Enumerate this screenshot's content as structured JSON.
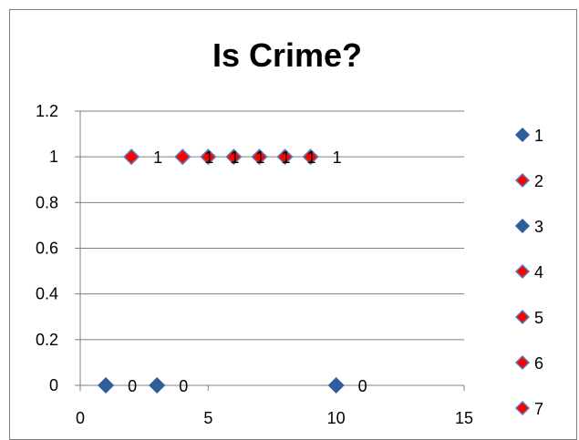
{
  "chart_data": {
    "type": "scatter",
    "title": "Is Crime?",
    "xlabel": "",
    "ylabel": "",
    "xlim": [
      0,
      15
    ],
    "ylim": [
      0,
      1.2
    ],
    "x_ticks": [
      "0",
      "5",
      "10",
      "15"
    ],
    "y_ticks": [
      "0",
      "0.2",
      "0.4",
      "0.6",
      "0.8",
      "1",
      "1.2"
    ],
    "grid": "horizontal",
    "legend_position": "right",
    "colors": {
      "blue": "#2E5E9B",
      "red": "#FF0000",
      "red_outline": "#4F81BD",
      "axis": "#808080"
    },
    "series": [
      {
        "name": "1",
        "x": 1,
        "y": 0,
        "label": "0",
        "color": "blue"
      },
      {
        "name": "2",
        "x": 2,
        "y": 1,
        "label": "1",
        "color": "red"
      },
      {
        "name": "3",
        "x": 3,
        "y": 0,
        "label": "0",
        "color": "blue"
      },
      {
        "name": "4",
        "x": 4,
        "y": 1,
        "label": "1",
        "color": "red"
      },
      {
        "name": "5",
        "x": 5,
        "y": 1,
        "label": "1",
        "color": "red"
      },
      {
        "name": "6",
        "x": 6,
        "y": 1,
        "label": "1",
        "color": "red"
      },
      {
        "name": "7",
        "x": 7,
        "y": 1,
        "label": "1",
        "color": "red"
      },
      {
        "name": "",
        "x": 8,
        "y": 1,
        "label": "1",
        "color": "red"
      },
      {
        "name": "",
        "x": 9,
        "y": 1,
        "label": "1",
        "color": "red"
      },
      {
        "name": "",
        "x": 10,
        "y": 0,
        "label": "0",
        "color": "blue"
      }
    ]
  }
}
